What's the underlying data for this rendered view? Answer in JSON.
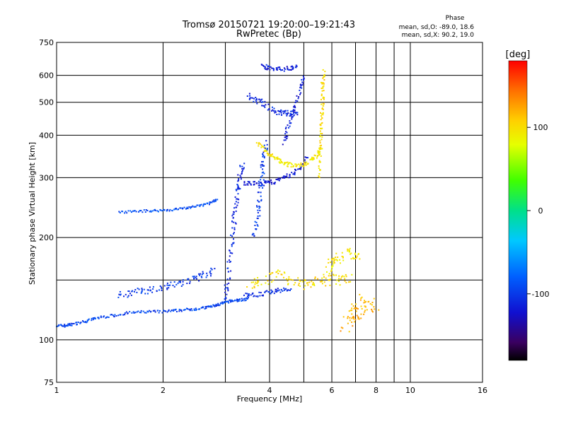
{
  "chart_data": {
    "type": "scatter",
    "title": "Tromsø 20150721 19:20:00–19:21:43",
    "subtitle": "RwPretec (Bp)",
    "xlabel": "Frequency [MHz]",
    "ylabel": "Stationary phase Virtual Height [km]",
    "x_scale": "log",
    "y_scale": "log",
    "xlim": [
      1,
      16
    ],
    "ylim": [
      75,
      750
    ],
    "x_ticks": [
      1,
      2,
      4,
      6,
      8,
      10,
      16
    ],
    "y_ticks": [
      75,
      100,
      200,
      300,
      400,
      500,
      600,
      750
    ],
    "x_minor_ticks": [
      3,
      5,
      7,
      9
    ],
    "y_minor_ticks": [
      150
    ],
    "grid": true,
    "stats": {
      "heading": "Phase",
      "line1": "mean, sd,O: -89.0, 18.6",
      "line2": "mean, sd,X:  90.2, 19.0"
    },
    "colorbar": {
      "label": "[deg]",
      "ticks": [
        100,
        0,
        -100
      ],
      "range": [
        -180,
        180
      ],
      "colormap": "rainbow"
    },
    "series": [
      {
        "trace": "lower-blue-trace",
        "phase": -95,
        "x": [
          1.0,
          1.05,
          1.1,
          1.2,
          1.3,
          1.45,
          1.6,
          1.8,
          2.0,
          2.2,
          2.4,
          2.6,
          2.8,
          2.95,
          3.1,
          3.3,
          3.5
        ],
        "y": [
          110,
          110,
          111,
          113,
          116,
          118,
          120,
          121,
          121,
          122,
          123,
          124,
          126,
          128,
          130,
          131,
          132
        ],
        "spread": 0.012
      },
      {
        "trace": "upper-blue-trace",
        "phase": -100,
        "x": [
          1.5,
          1.65,
          1.8,
          2.0,
          2.2,
          2.4,
          2.6,
          2.8
        ],
        "y": [
          135,
          138,
          140,
          143,
          146,
          150,
          155,
          160
        ],
        "spread": 0.03
      },
      {
        "trace": "f1-trace",
        "phase": -90,
        "x": [
          1.5,
          1.7,
          1.9,
          2.1,
          2.3,
          2.5,
          2.7,
          2.85
        ],
        "y": [
          237,
          239,
          240,
          241,
          244,
          247,
          252,
          258
        ],
        "spread": 0.01
      },
      {
        "trace": "cusp-column",
        "phase": -110,
        "x": [
          3.0,
          3.05,
          3.1,
          3.15,
          3.2,
          3.25,
          3.3,
          3.35
        ],
        "y": [
          130,
          150,
          180,
          210,
          240,
          270,
          300,
          330
        ],
        "spread": 0.03
      },
      {
        "trace": "o-mode-trace",
        "phase": -120,
        "x": [
          3.4,
          3.6,
          3.8,
          4.0,
          4.3,
          4.6,
          4.9,
          5.1
        ],
        "y": [
          290,
          288,
          287,
          290,
          296,
          306,
          320,
          345
        ],
        "spread": 0.02
      },
      {
        "trace": "x-mode-trace",
        "phase": 95,
        "x": [
          3.7,
          3.9,
          4.1,
          4.3,
          4.5,
          4.8,
          5.1,
          5.4,
          5.6
        ],
        "y": [
          380,
          360,
          345,
          335,
          328,
          326,
          330,
          345,
          370
        ],
        "spread": 0.02
      },
      {
        "trace": "x-mode-column",
        "phase": 100,
        "x": [
          5.5,
          5.55,
          5.6,
          5.6,
          5.65,
          5.65,
          5.7
        ],
        "y": [
          300,
          350,
          400,
          450,
          500,
          560,
          620
        ],
        "spread": 0.02
      },
      {
        "trace": "echo-520",
        "phase": -110,
        "x": [
          3.5,
          3.7,
          3.9,
          4.2,
          4.4,
          4.6,
          4.8
        ],
        "y": [
          520,
          510,
          490,
          470,
          465,
          460,
          470
        ],
        "spread": 0.03
      },
      {
        "trace": "echo-640",
        "phase": -115,
        "x": [
          3.8,
          4.0,
          4.3,
          4.6,
          4.8
        ],
        "y": [
          640,
          630,
          625,
          630,
          640
        ],
        "spread": 0.02
      },
      {
        "trace": "cusp-edge",
        "phase": -115,
        "x": [
          4.4,
          4.5,
          4.7,
          4.9,
          5.0
        ],
        "y": [
          380,
          420,
          480,
          550,
          600
        ],
        "spread": 0.02
      },
      {
        "trace": "e-layer-o",
        "phase": -105,
        "x": [
          3.4,
          3.7,
          4.0,
          4.3,
          4.6
        ],
        "y": [
          135,
          136,
          138,
          140,
          141
        ],
        "spread": 0.02
      },
      {
        "trace": "e-layer-x",
        "phase": 100,
        "x": [
          3.5,
          3.8,
          4.2,
          4.6,
          5.0,
          5.4,
          5.8,
          6.3,
          6.8
        ],
        "y": [
          145,
          150,
          155,
          150,
          145,
          148,
          150,
          150,
          152
        ],
        "spread": 0.05
      },
      {
        "trace": "x-blob-170",
        "phase": 95,
        "x": [
          5.8,
          6.0,
          6.3,
          6.8,
          7.2
        ],
        "y": [
          160,
          170,
          175,
          180,
          175
        ],
        "spread": 0.05
      },
      {
        "trace": "mid-column",
        "phase": -100,
        "x": [
          3.6,
          3.7,
          3.75,
          3.8,
          3.85,
          3.9
        ],
        "y": [
          200,
          230,
          260,
          300,
          340,
          380
        ],
        "spread": 0.03
      },
      {
        "trace": "scatter-low-right",
        "phase": 120,
        "x": [
          6.5,
          6.8,
          7.0,
          7.2,
          7.6,
          8.0
        ],
        "y": [
          110,
          115,
          120,
          125,
          130,
          128
        ],
        "spread": 0.08
      }
    ]
  }
}
